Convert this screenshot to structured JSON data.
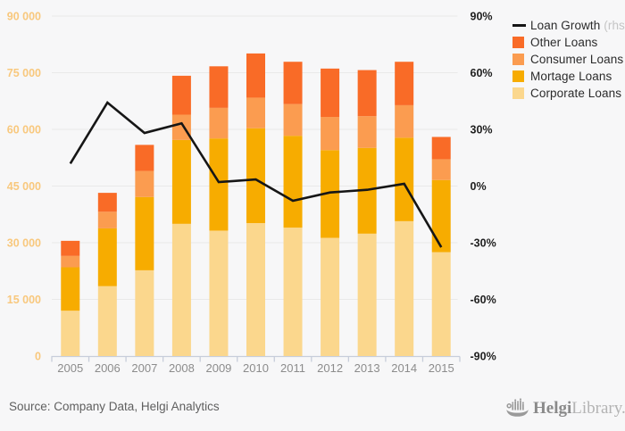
{
  "chart_data": {
    "type": "bar",
    "subtype": "stacked-bars-with-line-overlay",
    "title": "",
    "categories": [
      "2005",
      "2006",
      "2007",
      "2008",
      "2009",
      "2010",
      "2011",
      "2012",
      "2013",
      "2014",
      "2015"
    ],
    "series": [
      {
        "name": "Corporate Loans",
        "color": "#fbd78d",
        "values": [
          12000,
          18500,
          22700,
          35000,
          33200,
          35200,
          34000,
          31300,
          32400,
          35700,
          27500
        ]
      },
      {
        "name": "Mortage Loans",
        "color": "#f7ac00",
        "values": [
          11500,
          15300,
          19400,
          22200,
          24400,
          25100,
          24300,
          23200,
          22700,
          22100,
          19100
        ]
      },
      {
        "name": "Consumer Loans",
        "color": "#fb9c50",
        "values": [
          3000,
          4400,
          6900,
          6700,
          8100,
          8100,
          8400,
          8800,
          8400,
          8600,
          5500
        ]
      },
      {
        "name": "Other Loans",
        "color": "#f96b27",
        "values": [
          4000,
          5000,
          6900,
          10300,
          11000,
          11700,
          11200,
          12800,
          12200,
          11500,
          5900
        ]
      }
    ],
    "line_series": {
      "name": "Loan Growth",
      "axis": "rhs",
      "color": "#161616",
      "values": [
        11.9,
        44.2,
        28.1,
        33.2,
        2.1,
        3.5,
        -7.8,
        -3.4,
        -2.0,
        1.2,
        -32.4
      ]
    },
    "left_axis": {
      "ticks": [
        "0",
        "15 000",
        "30 000",
        "45 000",
        "60 000",
        "75 000",
        "90 000"
      ],
      "min": 0,
      "max": 90000,
      "label_color": "#f8c87d"
    },
    "right_axis": {
      "ticks": [
        "-90%",
        "-60%",
        "-30%",
        "0%",
        "30%",
        "60%",
        "90%"
      ],
      "min": -90,
      "max": 90,
      "label_color": "#1f1f1f"
    },
    "x_axis_label_color": "#8c8c8c",
    "grid": true,
    "grid_color": "#e9e9e9",
    "axis_line_color": "#c7cdda",
    "background_color": "#f7f7f8",
    "legend_position": "top-right"
  },
  "legend": {
    "items": [
      {
        "label": "Loan Growth",
        "suffix": " (rhs)",
        "swatch": "line",
        "color": "#161616"
      },
      {
        "label": "Other Loans",
        "suffix": "",
        "swatch": "box",
        "color": "#f96b27"
      },
      {
        "label": "Consumer Loans",
        "suffix": "",
        "swatch": "box",
        "color": "#fb9c50"
      },
      {
        "label": "Mortage Loans",
        "suffix": "",
        "swatch": "box",
        "color": "#f7ac00"
      },
      {
        "label": "Corporate Loans",
        "suffix": "",
        "swatch": "box",
        "color": "#fbd78d"
      }
    ]
  },
  "footer": {
    "source": "Source: Company Data, Helgi Analytics",
    "brand_primary": "Helgi",
    "brand_secondary": "Library."
  }
}
